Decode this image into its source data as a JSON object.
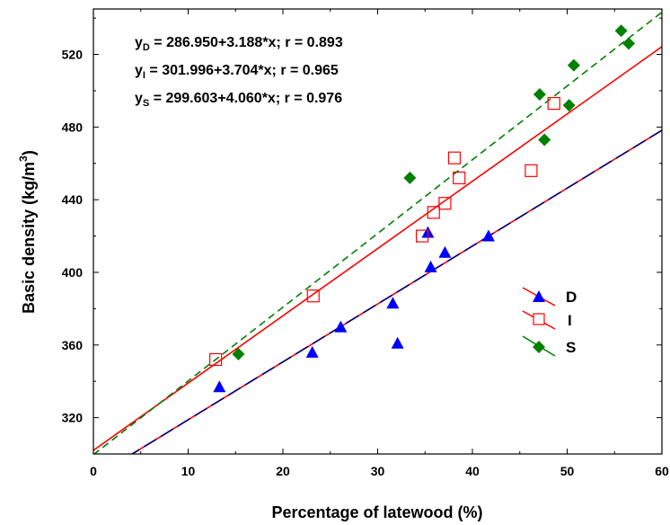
{
  "chart_data": {
    "type": "scatter",
    "title": "",
    "xlabel": "Percentage of latewood (%)",
    "ylabel_main": "Basic density (kg/m",
    "ylabel_sup": "3",
    "ylabel_close": ")",
    "xlim": [
      0,
      60
    ],
    "ylim": [
      300,
      545
    ],
    "xticks": [
      0,
      10,
      20,
      30,
      40,
      50,
      60
    ],
    "yticks": [
      320,
      360,
      400,
      440,
      480,
      520
    ],
    "grid": false,
    "legend_position": "right-middle",
    "equations": [
      {
        "y": "y",
        "sub": "D",
        "text": " = 286.950+3.188*x; r = 0.893"
      },
      {
        "y": "y",
        "sub": "I",
        "text": " = 301.996+3.704*x; r = 0.965"
      },
      {
        "y": "y",
        "sub": "S",
        "text": " = 299.603+4.060*x; r = 0.976"
      }
    ],
    "series": [
      {
        "name": "D",
        "marker": "triangle",
        "color": "#0000ff",
        "line_color": "#ff0000",
        "points": [
          [
            13.3,
            337
          ],
          [
            23.1,
            356
          ],
          [
            26.1,
            370
          ],
          [
            31.6,
            383
          ],
          [
            32.1,
            361
          ],
          [
            35.3,
            422
          ],
          [
            35.6,
            403
          ],
          [
            37.1,
            411
          ],
          [
            41.7,
            420
          ]
        ]
      },
      {
        "name": "I",
        "marker": "square-open",
        "color": "#ff0000",
        "line_color": "#ff0000",
        "points": [
          [
            12.9,
            352
          ],
          [
            23.2,
            387
          ],
          [
            34.7,
            420
          ],
          [
            35.9,
            433
          ],
          [
            37.1,
            438
          ],
          [
            38.1,
            463
          ],
          [
            38.6,
            452
          ],
          [
            46.2,
            456
          ],
          [
            48.6,
            493
          ]
        ]
      },
      {
        "name": "S",
        "marker": "diamond",
        "color": "#008000",
        "line_color": "#008000",
        "points": [
          [
            15.3,
            355
          ],
          [
            33.4,
            452
          ],
          [
            47.1,
            498
          ],
          [
            47.6,
            473
          ],
          [
            50.2,
            492
          ],
          [
            50.7,
            514
          ],
          [
            55.7,
            533
          ],
          [
            56.5,
            526
          ]
        ]
      }
    ]
  },
  "colors": {
    "series_D": "#0000ff",
    "series_I": "#ff0000",
    "series_S": "#008000",
    "fit_line": "#ff0000",
    "dashed_line": "#008000"
  }
}
